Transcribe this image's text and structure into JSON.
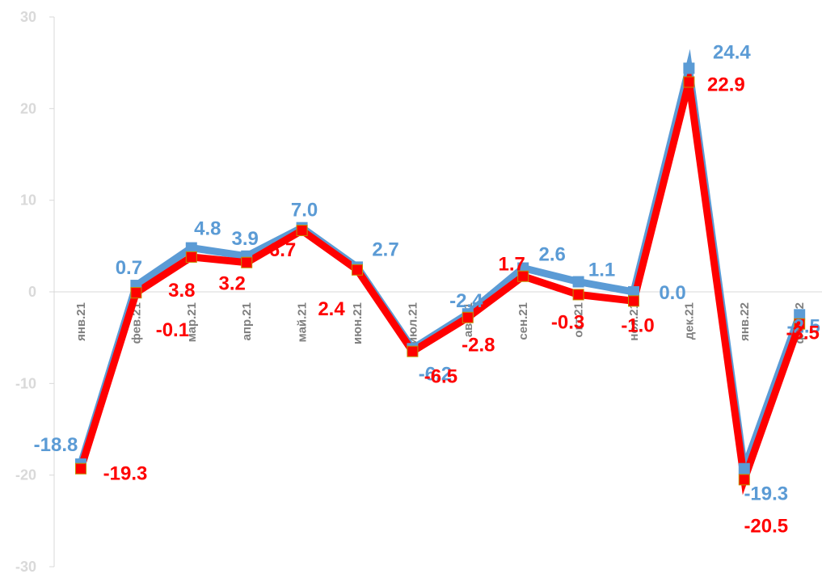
{
  "chart_data": {
    "type": "line",
    "categories": [
      "янв.21",
      "фев.21",
      "мар.21",
      "апр.21",
      "май.21",
      "июн.21",
      "июл.21",
      "авг.21",
      "сен.21",
      "окт.21",
      "ноя.21",
      "дек.21",
      "янв.22",
      "фев.22"
    ],
    "series": [
      {
        "color": "#5b9bd5",
        "values": [
          -18.8,
          0.7,
          4.8,
          3.9,
          7.0,
          2.7,
          -6.2,
          -2.4,
          2.6,
          1.1,
          0.0,
          24.4,
          -19.3,
          -2.5
        ],
        "labels": [
          "-18.8",
          "0.7",
          "4.8",
          "3.9",
          "7.0",
          "2.7",
          "-6.2",
          "-2.4",
          "2.6",
          "1.1",
          "0.0",
          "24.4",
          "-19.3",
          "-2.5"
        ]
      },
      {
        "color": "#ff0000",
        "values": [
          -19.3,
          -0.1,
          3.8,
          3.2,
          6.7,
          2.4,
          -6.5,
          -2.8,
          1.7,
          -0.3,
          -1.0,
          22.9,
          -20.5,
          -3.5
        ],
        "labels": [
          "-19.3",
          "-0.1",
          "3.8",
          "3.2",
          "6.7",
          "2.4",
          "-6.5",
          "-2.8",
          "1.7",
          "-0.3",
          "-1.0",
          "22.9",
          "-20.5",
          "-3.5"
        ]
      }
    ],
    "yticks": [
      "30",
      "20",
      "10",
      "0",
      "-10",
      "-20",
      "-30"
    ],
    "ylim": [
      -30,
      30
    ],
    "grid": false,
    "legend": "none"
  }
}
